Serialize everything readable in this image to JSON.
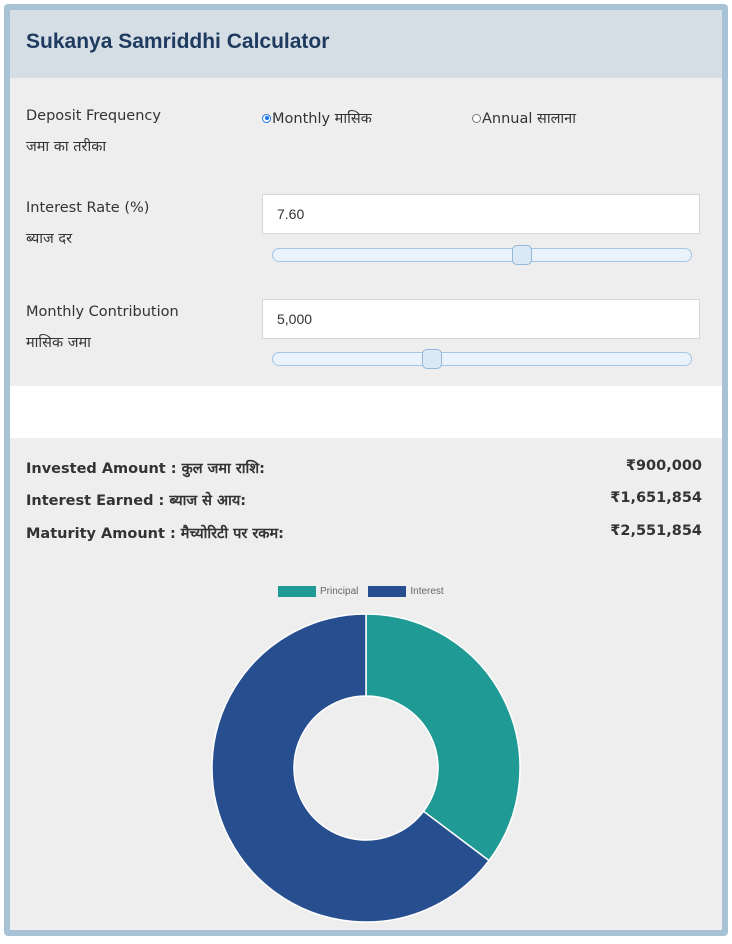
{
  "header": {
    "title": "Sukanya Samriddhi Calculator"
  },
  "form": {
    "deposit_frequency": {
      "label_en": "Deposit Frequency",
      "label_hi": "जमा का तरीका",
      "options": [
        {
          "label": "Monthly मासिक",
          "checked": true
        },
        {
          "label": "Annual सालाना",
          "checked": false
        }
      ]
    },
    "interest_rate": {
      "label_en": "Interest Rate (%)",
      "label_hi": "ब्याज दर",
      "value": "7.60",
      "slider_fraction": 0.6
    },
    "monthly_contribution": {
      "label_en": "Monthly Contribution",
      "label_hi": "मासिक जमा",
      "value": "5,000",
      "slider_fraction": 0.375
    }
  },
  "results": {
    "invested": {
      "label": "Invested Amount : कुल जमा राशि:",
      "value": "₹900,000"
    },
    "interest": {
      "label": "Interest Earned : ब्याज से आय:",
      "value": "₹1,651,854"
    },
    "maturity": {
      "label": "Maturity Amount : मैच्योरिटी पर रकम:",
      "value": "₹2,551,854"
    }
  },
  "chart_data": {
    "type": "pie",
    "categories": [
      "Principal",
      "Interest"
    ],
    "values": [
      900000,
      1651854
    ],
    "colors": [
      "#1f9a94",
      "#274f8f"
    ],
    "legend": "top-center"
  }
}
